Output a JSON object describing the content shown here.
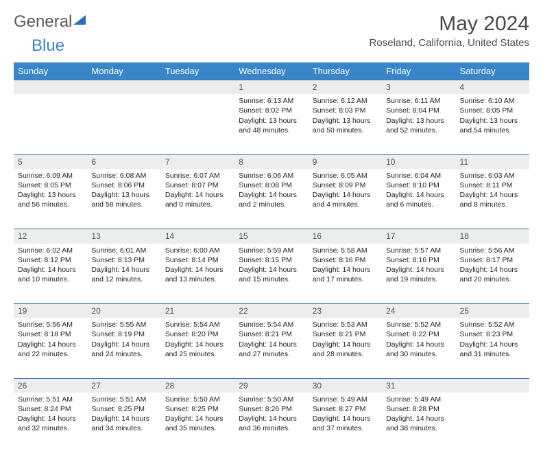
{
  "logo": {
    "part1": "General",
    "part2": "Blue"
  },
  "title": "May 2024",
  "location": "Roseland, California, United States",
  "colors": {
    "header_bg": "#3886c9",
    "header_text": "#ffffff",
    "daynum_bg": "#ededed",
    "row_border": "#3876a8",
    "body_text": "#222222",
    "title_text": "#4a4a4a"
  },
  "weekdays": [
    "Sunday",
    "Monday",
    "Tuesday",
    "Wednesday",
    "Thursday",
    "Friday",
    "Saturday"
  ],
  "weeks": [
    {
      "nums": [
        "",
        "",
        "",
        "1",
        "2",
        "3",
        "4"
      ],
      "cells": [
        null,
        null,
        null,
        {
          "sr": "Sunrise: 6:13 AM",
          "ss": "Sunset: 8:02 PM",
          "dl": "Daylight: 13 hours and 48 minutes."
        },
        {
          "sr": "Sunrise: 6:12 AM",
          "ss": "Sunset: 8:03 PM",
          "dl": "Daylight: 13 hours and 50 minutes."
        },
        {
          "sr": "Sunrise: 6:11 AM",
          "ss": "Sunset: 8:04 PM",
          "dl": "Daylight: 13 hours and 52 minutes."
        },
        {
          "sr": "Sunrise: 6:10 AM",
          "ss": "Sunset: 8:05 PM",
          "dl": "Daylight: 13 hours and 54 minutes."
        }
      ]
    },
    {
      "nums": [
        "5",
        "6",
        "7",
        "8",
        "9",
        "10",
        "11"
      ],
      "cells": [
        {
          "sr": "Sunrise: 6:09 AM",
          "ss": "Sunset: 8:05 PM",
          "dl": "Daylight: 13 hours and 56 minutes."
        },
        {
          "sr": "Sunrise: 6:08 AM",
          "ss": "Sunset: 8:06 PM",
          "dl": "Daylight: 13 hours and 58 minutes."
        },
        {
          "sr": "Sunrise: 6:07 AM",
          "ss": "Sunset: 8:07 PM",
          "dl": "Daylight: 14 hours and 0 minutes."
        },
        {
          "sr": "Sunrise: 6:06 AM",
          "ss": "Sunset: 8:08 PM",
          "dl": "Daylight: 14 hours and 2 minutes."
        },
        {
          "sr": "Sunrise: 6:05 AM",
          "ss": "Sunset: 8:09 PM",
          "dl": "Daylight: 14 hours and 4 minutes."
        },
        {
          "sr": "Sunrise: 6:04 AM",
          "ss": "Sunset: 8:10 PM",
          "dl": "Daylight: 14 hours and 6 minutes."
        },
        {
          "sr": "Sunrise: 6:03 AM",
          "ss": "Sunset: 8:11 PM",
          "dl": "Daylight: 14 hours and 8 minutes."
        }
      ]
    },
    {
      "nums": [
        "12",
        "13",
        "14",
        "15",
        "16",
        "17",
        "18"
      ],
      "cells": [
        {
          "sr": "Sunrise: 6:02 AM",
          "ss": "Sunset: 8:12 PM",
          "dl": "Daylight: 14 hours and 10 minutes."
        },
        {
          "sr": "Sunrise: 6:01 AM",
          "ss": "Sunset: 8:13 PM",
          "dl": "Daylight: 14 hours and 12 minutes."
        },
        {
          "sr": "Sunrise: 6:00 AM",
          "ss": "Sunset: 8:14 PM",
          "dl": "Daylight: 14 hours and 13 minutes."
        },
        {
          "sr": "Sunrise: 5:59 AM",
          "ss": "Sunset: 8:15 PM",
          "dl": "Daylight: 14 hours and 15 minutes."
        },
        {
          "sr": "Sunrise: 5:58 AM",
          "ss": "Sunset: 8:16 PM",
          "dl": "Daylight: 14 hours and 17 minutes."
        },
        {
          "sr": "Sunrise: 5:57 AM",
          "ss": "Sunset: 8:16 PM",
          "dl": "Daylight: 14 hours and 19 minutes."
        },
        {
          "sr": "Sunrise: 5:56 AM",
          "ss": "Sunset: 8:17 PM",
          "dl": "Daylight: 14 hours and 20 minutes."
        }
      ]
    },
    {
      "nums": [
        "19",
        "20",
        "21",
        "22",
        "23",
        "24",
        "25"
      ],
      "cells": [
        {
          "sr": "Sunrise: 5:56 AM",
          "ss": "Sunset: 8:18 PM",
          "dl": "Daylight: 14 hours and 22 minutes."
        },
        {
          "sr": "Sunrise: 5:55 AM",
          "ss": "Sunset: 8:19 PM",
          "dl": "Daylight: 14 hours and 24 minutes."
        },
        {
          "sr": "Sunrise: 5:54 AM",
          "ss": "Sunset: 8:20 PM",
          "dl": "Daylight: 14 hours and 25 minutes."
        },
        {
          "sr": "Sunrise: 5:54 AM",
          "ss": "Sunset: 8:21 PM",
          "dl": "Daylight: 14 hours and 27 minutes."
        },
        {
          "sr": "Sunrise: 5:53 AM",
          "ss": "Sunset: 8:21 PM",
          "dl": "Daylight: 14 hours and 28 minutes."
        },
        {
          "sr": "Sunrise: 5:52 AM",
          "ss": "Sunset: 8:22 PM",
          "dl": "Daylight: 14 hours and 30 minutes."
        },
        {
          "sr": "Sunrise: 5:52 AM",
          "ss": "Sunset: 8:23 PM",
          "dl": "Daylight: 14 hours and 31 minutes."
        }
      ]
    },
    {
      "nums": [
        "26",
        "27",
        "28",
        "29",
        "30",
        "31",
        ""
      ],
      "cells": [
        {
          "sr": "Sunrise: 5:51 AM",
          "ss": "Sunset: 8:24 PM",
          "dl": "Daylight: 14 hours and 32 minutes."
        },
        {
          "sr": "Sunrise: 5:51 AM",
          "ss": "Sunset: 8:25 PM",
          "dl": "Daylight: 14 hours and 34 minutes."
        },
        {
          "sr": "Sunrise: 5:50 AM",
          "ss": "Sunset: 8:25 PM",
          "dl": "Daylight: 14 hours and 35 minutes."
        },
        {
          "sr": "Sunrise: 5:50 AM",
          "ss": "Sunset: 8:26 PM",
          "dl": "Daylight: 14 hours and 36 minutes."
        },
        {
          "sr": "Sunrise: 5:49 AM",
          "ss": "Sunset: 8:27 PM",
          "dl": "Daylight: 14 hours and 37 minutes."
        },
        {
          "sr": "Sunrise: 5:49 AM",
          "ss": "Sunset: 8:28 PM",
          "dl": "Daylight: 14 hours and 38 minutes."
        },
        null
      ]
    }
  ]
}
